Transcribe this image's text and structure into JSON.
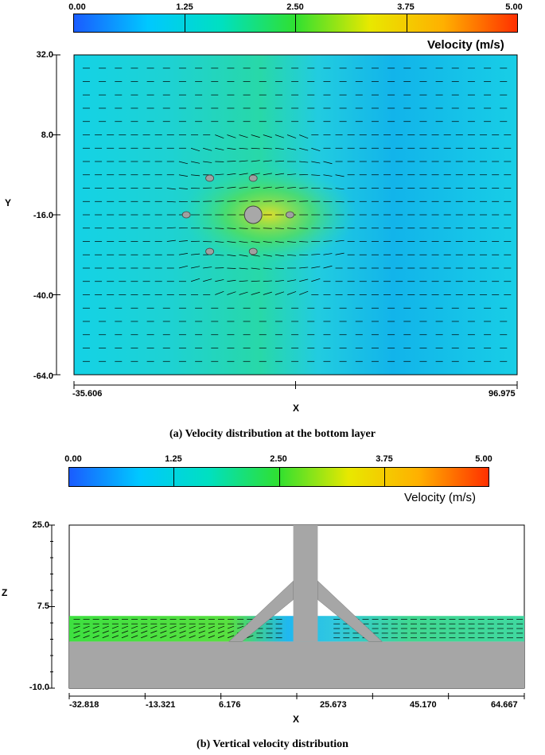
{
  "chart_data": [
    {
      "type": "heatmap",
      "colorbar": {
        "ticks": [
          "0.00",
          "1.25",
          "2.50",
          "3.75",
          "5.00"
        ],
        "min": 0,
        "max": 5,
        "title": "Velocity (m/s)",
        "colors": [
          "#1a5cff",
          "#00c8ff",
          "#00e0c0",
          "#30e030",
          "#e8e800",
          "#ffb000",
          "#ff3000"
        ]
      },
      "xlabel": "X",
      "ylabel": "Y",
      "x_ticks": [
        "-35.606",
        "96.975"
      ],
      "y_ticks": [
        "32.0",
        "8.0",
        "-16.0",
        "-40.0",
        "-64.0"
      ],
      "xlim": [
        -35.606,
        96.975
      ],
      "ylim": [
        -64.0,
        32.0
      ],
      "background_speed": 1.6,
      "structure": {
        "center": [
          18.0,
          -16.0
        ],
        "central_pile_radius": 2.8,
        "piles": [
          [
            -2.0,
            -16.0
          ],
          [
            5.0,
            -5.0
          ],
          [
            5.0,
            -27.0
          ],
          [
            18.0,
            -5.0
          ],
          [
            18.0,
            -27.0
          ],
          [
            29.0,
            -16.0
          ]
        ]
      },
      "caption": "(a) Velocity distribution at the bottom layer"
    },
    {
      "type": "heatmap",
      "colorbar": {
        "ticks": [
          "0.00",
          "1.25",
          "2.50",
          "3.75",
          "5.00"
        ],
        "min": 0,
        "max": 5,
        "title": "Velocity (m/s)",
        "colors": [
          "#1a5cff",
          "#00c8ff",
          "#00e0c0",
          "#30e030",
          "#e8e800",
          "#ffb000",
          "#ff3000"
        ]
      },
      "xlabel": "X",
      "ylabel": "Z",
      "x_ticks": [
        "-32.818",
        "-13.321",
        "6.176",
        "25.673",
        "45.170",
        "64.667"
      ],
      "y_ticks": [
        "25.0",
        "7.5",
        "-10.0"
      ],
      "xlim": [
        -37.0,
        67.0
      ],
      "ylim": [
        -10.0,
        25.0
      ],
      "water_surface": 5.5,
      "seabed": 0.0,
      "caption": "(b) Vertical velocity distribution"
    }
  ]
}
